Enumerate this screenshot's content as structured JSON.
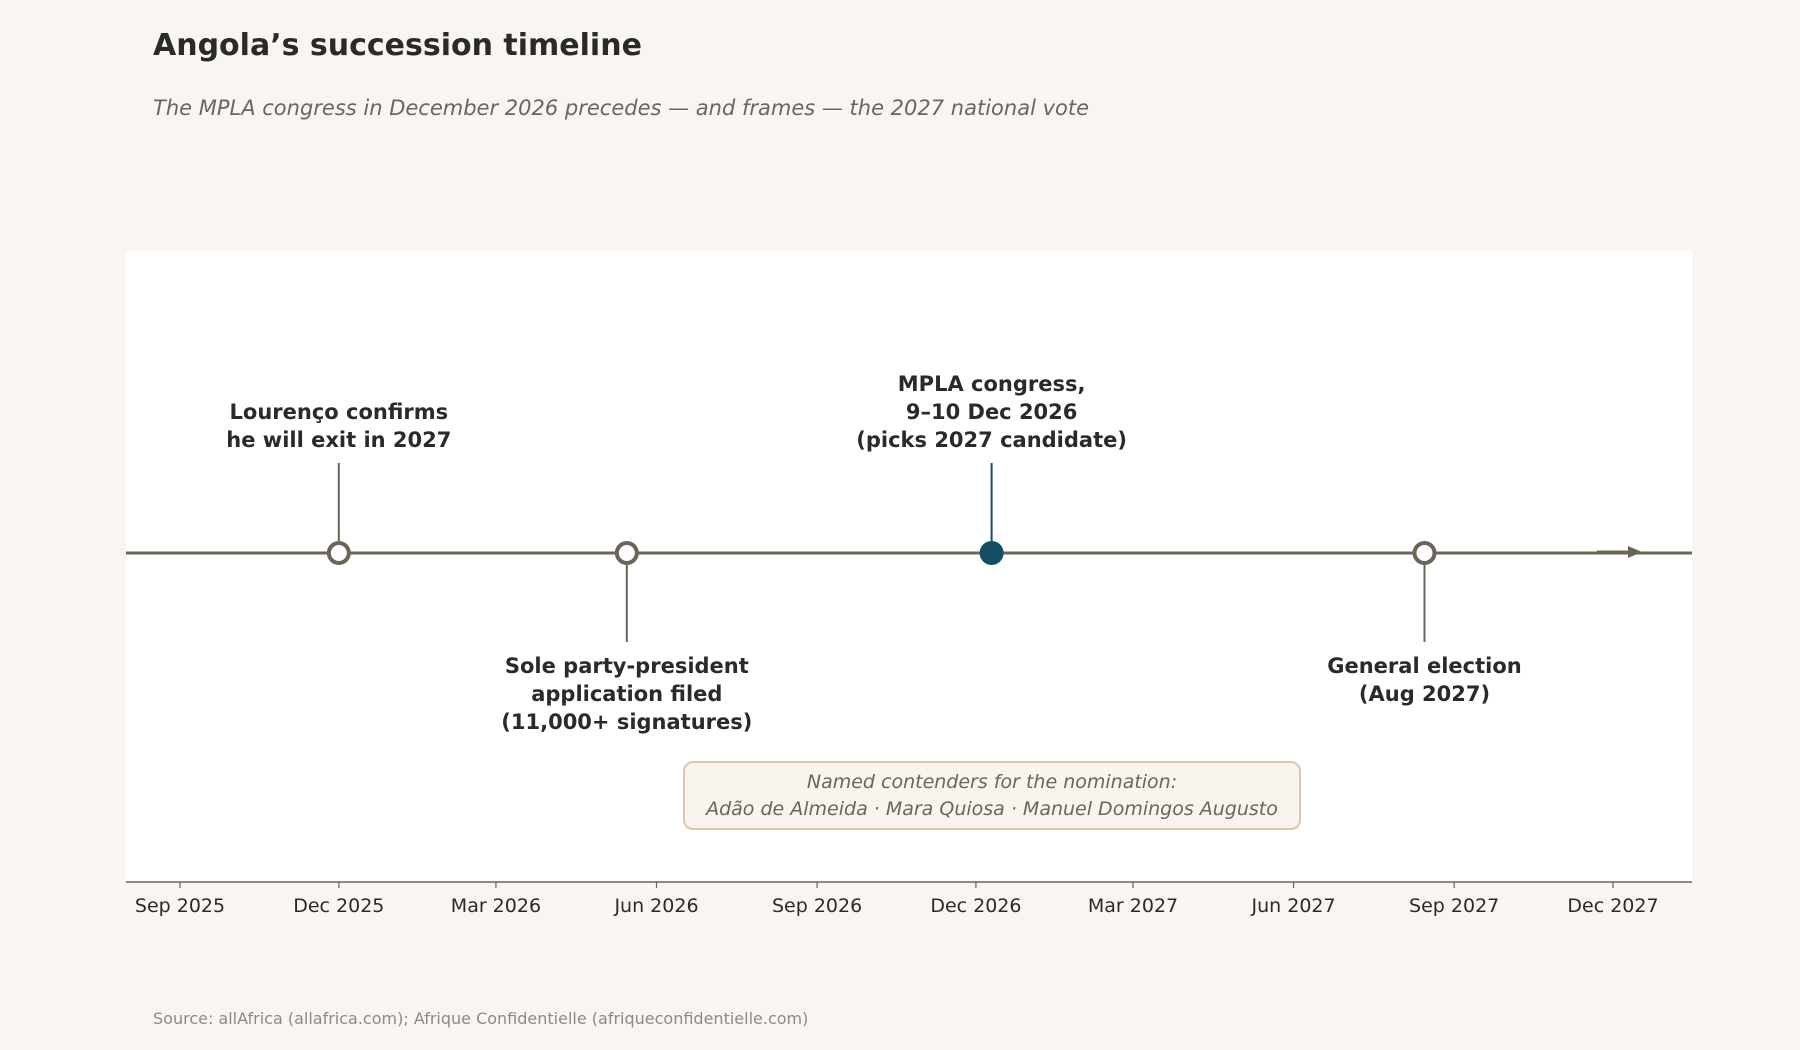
{
  "title": "Angola’s succession timeline",
  "subtitle": "The MPLA congress in December 2026 precedes — and frames — the 2027 national vote",
  "source": "Source: allAfrica (allafrica.com); Afrique Confidentielle (afriqueconfidentielle.com)",
  "colors": {
    "background": "#f9f6f1",
    "plot_background": "#ffffff",
    "axis_line": "#6b6459",
    "highlight": "#124d63",
    "text": "#2a2a2a",
    "callout_fill": "#f9f5ee",
    "callout_border": "#d9c9a8",
    "callout_text": "#6a655e"
  },
  "chart_data": {
    "type": "timeline",
    "x_axis": {
      "ticks": [
        {
          "date": "2025-09-01",
          "label": "Sep 2025"
        },
        {
          "date": "2025-12-01",
          "label": "Dec 2025"
        },
        {
          "date": "2026-03-01",
          "label": "Mar 2026"
        },
        {
          "date": "2026-06-01",
          "label": "Jun 2026"
        },
        {
          "date": "2026-09-01",
          "label": "Sep 2026"
        },
        {
          "date": "2026-12-01",
          "label": "Dec 2026"
        },
        {
          "date": "2027-03-01",
          "label": "Mar 2027"
        },
        {
          "date": "2027-06-01",
          "label": "Jun 2027"
        },
        {
          "date": "2027-09-01",
          "label": "Sep 2027"
        },
        {
          "date": "2027-12-01",
          "label": "Dec 2027"
        }
      ],
      "range": [
        "2025-08-01",
        "2028-01-15"
      ]
    },
    "events": [
      {
        "date": "2025-12-01",
        "label": [
          "Lourenço confirms",
          "he will exit in 2027"
        ],
        "side": "above",
        "highlight": false
      },
      {
        "date": "2026-05-15",
        "label": [
          "Sole party-president",
          "application filed",
          "(11,000+ signatures)"
        ],
        "side": "below",
        "highlight": false
      },
      {
        "date": "2026-12-10",
        "label": [
          "MPLA congress,",
          "9–10 Dec 2026",
          "(picks 2027 candidate)"
        ],
        "side": "above",
        "highlight": true
      },
      {
        "date": "2027-08-15",
        "label": [
          "General election",
          "(Aug 2027)"
        ],
        "side": "below",
        "highlight": false
      }
    ],
    "callout": {
      "lines": [
        "Named contenders for the nomination:",
        "Adão de Almeida · Mara Quiosa · Manuel Domingos Augusto"
      ]
    }
  }
}
